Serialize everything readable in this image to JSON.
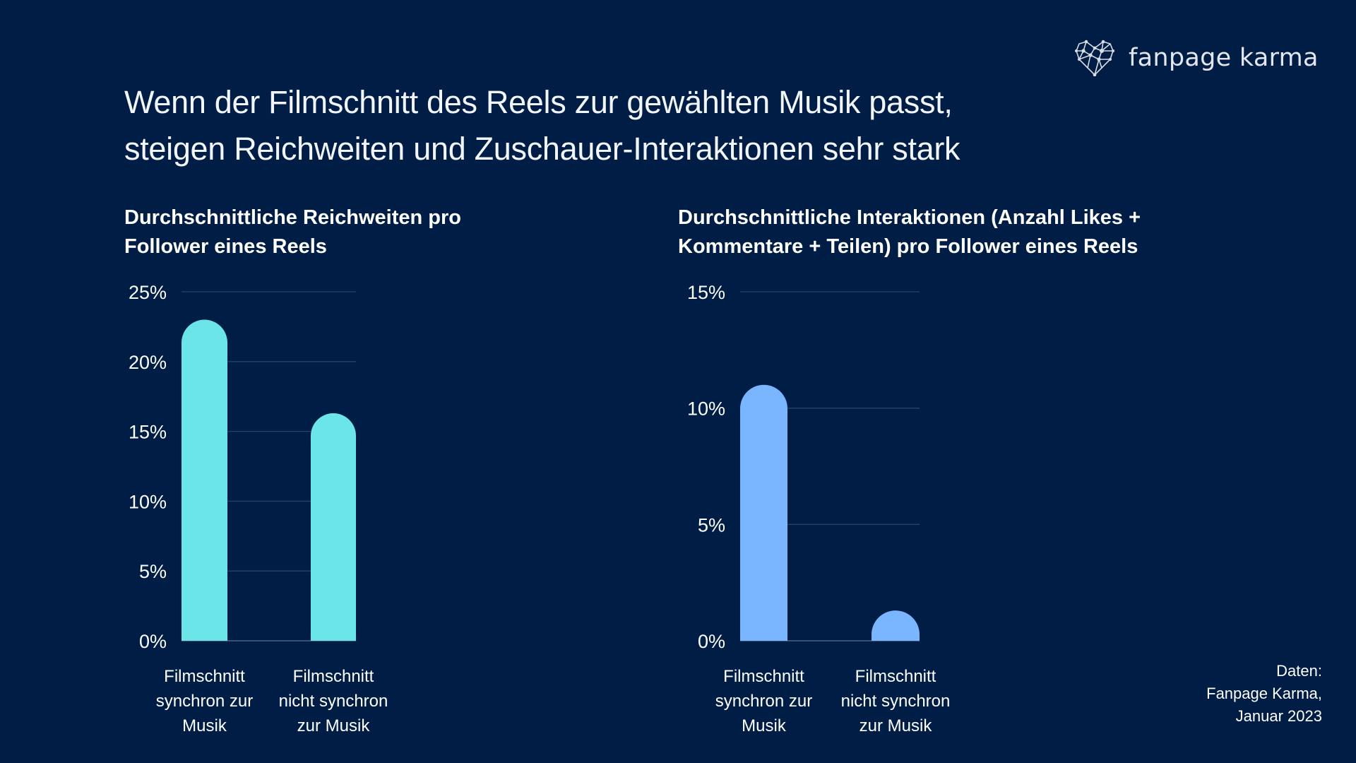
{
  "header": {
    "title_lines": [
      "Wenn der Filmschnitt des Reels zur gewählten Musik passt,",
      "steigen Reichweiten und Zuschauer-Interaktionen sehr stark"
    ],
    "logo_text": "fanpage karma"
  },
  "source": {
    "lines": [
      "Daten:",
      "Fanpage Karma,",
      "Januar 2023"
    ]
  },
  "chart_data": [
    {
      "type": "bar",
      "title_lines": [
        "Durchschnittliche Reichweiten pro",
        "Follower eines Reels"
      ],
      "categories": [
        [
          "Filmschnitt",
          "synchron zur",
          "Musik"
        ],
        [
          "Filmschnitt",
          "nicht synchron",
          "zur Musik"
        ]
      ],
      "values": [
        23,
        16.3
      ],
      "unit": "%",
      "ylim": [
        0,
        25
      ],
      "yticks": [
        "0%",
        "5%",
        "10%",
        "15%",
        "20%",
        "25%"
      ],
      "ytick_values": [
        0,
        5,
        10,
        15,
        20,
        25
      ],
      "grid": true,
      "color": "#6ce5e8"
    },
    {
      "type": "bar",
      "title_lines": [
        "Durchschnittliche Interaktionen (Anzahl Likes +",
        "Kommentare + Teilen) pro Follower eines Reels"
      ],
      "categories": [
        [
          "Filmschnitt",
          "synchron zur",
          "Musik"
        ],
        [
          "Filmschnitt",
          "nicht synchron",
          "zur Musik"
        ]
      ],
      "values": [
        11.0,
        1.3
      ],
      "unit": "%",
      "ylim": [
        0,
        15
      ],
      "yticks": [
        "0%",
        "5%",
        "10%",
        "15%"
      ],
      "ytick_values": [
        0,
        5,
        10,
        15
      ],
      "grid": true,
      "color": "#7ab6ff"
    }
  ],
  "colors": {
    "background": "#001e45",
    "grid": "#2a4066"
  }
}
